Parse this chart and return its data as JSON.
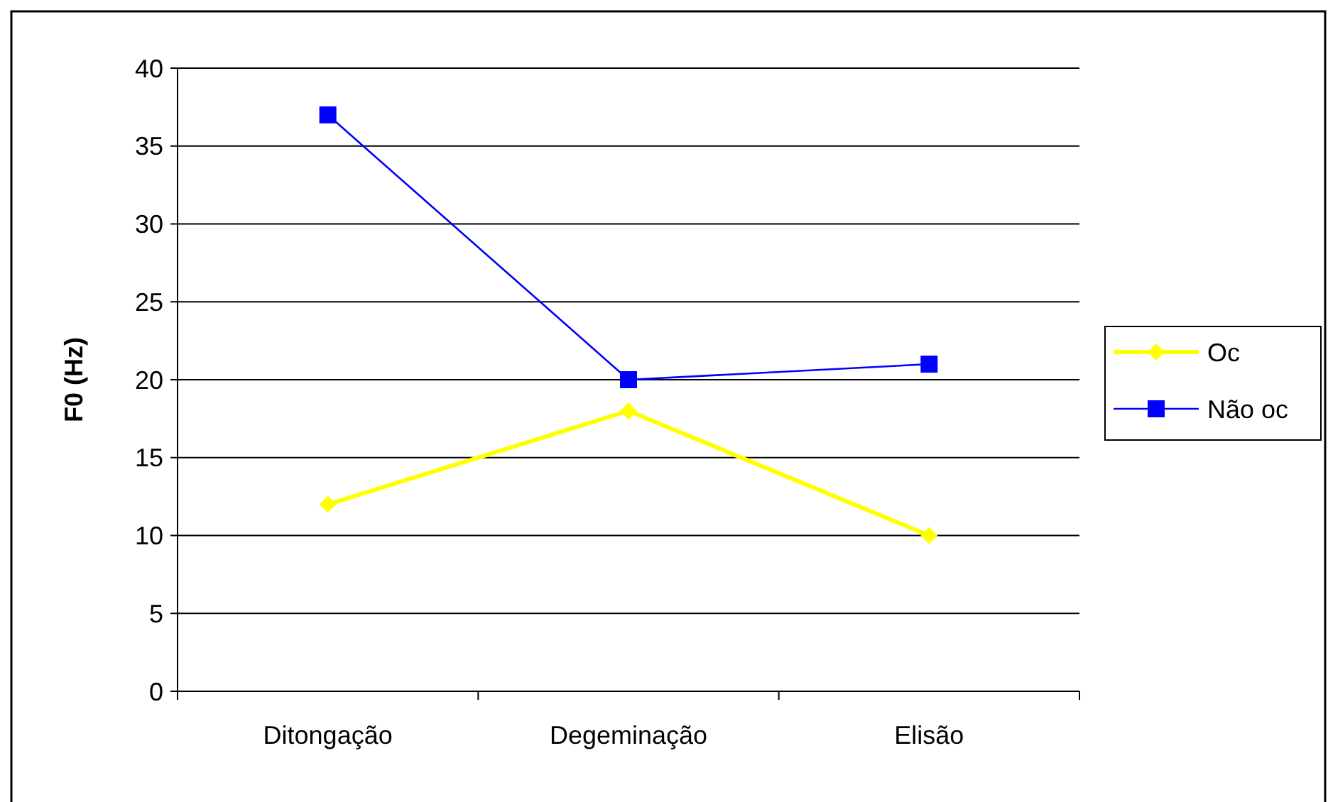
{
  "chart_data": {
    "type": "line",
    "ylabel": "F0 (Hz)",
    "categories": [
      "Ditongação",
      "Degeminação",
      "Elisão"
    ],
    "series": [
      {
        "name": "Oc",
        "color": "#ffff00",
        "values": [
          12,
          18,
          10
        ],
        "marker": "diamond"
      },
      {
        "name": "Não oc",
        "color": "#0000ff",
        "values": [
          37,
          20,
          21
        ],
        "marker": "square"
      }
    ],
    "ylim": [
      0,
      40
    ],
    "yticks": [
      0,
      5,
      10,
      15,
      20,
      25,
      30,
      35,
      40
    ],
    "grid": "y",
    "legend": "right"
  }
}
